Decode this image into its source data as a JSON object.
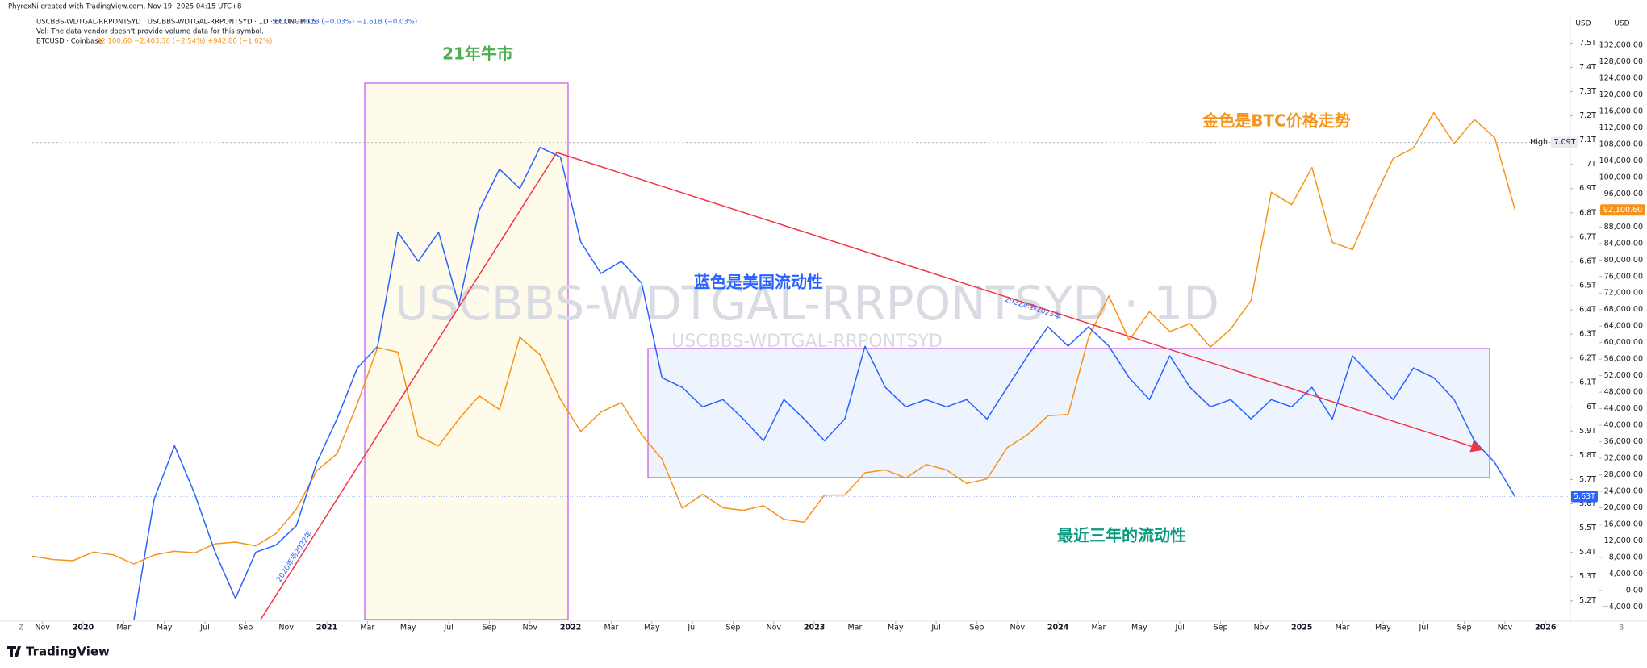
{
  "chart_data": {
    "type": "line",
    "attribution": "PhyrexNi created with TradingView.com, Nov 19, 2025 04:15 UTC+8",
    "vol_note": "Vol: The data vendor doesn't provide volume data for this symbol.",
    "watermark": "USCBBS-WDTGAL-RRPONTSYD · 1D",
    "watermark_small": "USCBBS-WDTGAL-RRPONTSYD",
    "brand": "TradingView",
    "corner_labels": [
      "Z",
      "B"
    ],
    "axis_headers": [
      "USD",
      "USD"
    ],
    "annotations": [
      {
        "text": "21年牛市"
      },
      {
        "text": "金色是BTC价格走势"
      },
      {
        "text": "蓝色是美国流动性"
      },
      {
        "text": "最近三年的流动性"
      },
      {
        "text": "2020年到2022年"
      },
      {
        "text": "2022年到2025年"
      }
    ],
    "x": [
      "2019-10",
      "2019-11",
      "2019-12",
      "2020-01",
      "2020-02",
      "2020-03",
      "2020-04",
      "2020-05",
      "2020-06",
      "2020-07",
      "2020-08",
      "2020-09",
      "2020-10",
      "2020-11",
      "2020-12",
      "2021-01",
      "2021-02",
      "2021-03",
      "2021-04",
      "2021-05",
      "2021-06",
      "2021-07",
      "2021-08",
      "2021-09",
      "2021-10",
      "2021-11",
      "2021-12",
      "2022-01",
      "2022-02",
      "2022-03",
      "2022-04",
      "2022-05",
      "2022-06",
      "2022-07",
      "2022-08",
      "2022-09",
      "2022-10",
      "2022-11",
      "2022-12",
      "2023-01",
      "2023-02",
      "2023-03",
      "2023-04",
      "2023-05",
      "2023-06",
      "2023-07",
      "2023-08",
      "2023-09",
      "2023-10",
      "2023-11",
      "2023-12",
      "2024-01",
      "2024-02",
      "2024-03",
      "2024-04",
      "2024-05",
      "2024-06",
      "2024-07",
      "2024-08",
      "2024-09",
      "2024-10",
      "2024-11",
      "2024-12",
      "2025-01",
      "2025-02",
      "2025-03",
      "2025-04",
      "2025-05",
      "2025-06",
      "2025-07",
      "2025-08",
      "2025-09",
      "2025-10",
      "2025-11"
    ],
    "series": [
      {
        "name": "USCBBS-WDTGAL-RRPONTSYD · USCBBS-WDTGAL-RRPONTSYD · 1D · ECONOMICS",
        "stats": "5.63T  −1.61B (−0.03%)  −1.61B (−0.03%)",
        "color": "#2962ff",
        "axis": "y",
        "values": [
          null,
          null,
          null,
          null,
          null,
          5.12,
          5.62,
          5.84,
          5.64,
          5.4,
          5.21,
          5.4,
          5.43,
          5.51,
          5.77,
          5.95,
          6.16,
          6.25,
          6.72,
          6.6,
          6.72,
          6.42,
          6.81,
          6.98,
          6.9,
          7.07,
          7.03,
          6.68,
          6.55,
          6.6,
          6.51,
          6.12,
          6.08,
          6.0,
          6.03,
          5.95,
          5.86,
          6.03,
          5.95,
          5.86,
          5.95,
          6.25,
          6.08,
          6.0,
          6.03,
          6.0,
          6.03,
          5.95,
          6.08,
          6.21,
          6.33,
          6.25,
          6.33,
          6.25,
          6.12,
          6.03,
          6.21,
          6.08,
          6.0,
          6.03,
          5.95,
          6.03,
          6.0,
          6.08,
          5.95,
          6.21,
          6.12,
          6.03,
          6.16,
          6.12,
          6.03,
          5.86,
          5.77,
          5.63
        ]
      },
      {
        "name": "BTCUSD · Coinbase",
        "stats": "92,100.60  −2,403.36 (−2.54%)  +942.80 (+1.02%)",
        "color": "#f7931a",
        "axis": "y2",
        "values": [
          8300,
          7500,
          7200,
          9300,
          8600,
          6400,
          8600,
          9500,
          9100,
          11300,
          11700,
          10800,
          13800,
          19700,
          29000,
          33100,
          45200,
          58800,
          57700,
          37300,
          35000,
          41500,
          47100,
          43800,
          61300,
          57000,
          46300,
          38500,
          43200,
          45500,
          37700,
          31800,
          19900,
          23300,
          20000,
          19400,
          20500,
          17200,
          16500,
          23100,
          23100,
          28500,
          29200,
          27200,
          30500,
          29200,
          25900,
          27000,
          34600,
          37700,
          42300,
          42600,
          61200,
          71300,
          60600,
          67500,
          62700,
          64600,
          58900,
          63300,
          70200,
          96400,
          93400,
          102400,
          84300,
          82500,
          94200,
          104600,
          107100,
          115700,
          108200,
          114000,
          109600,
          92100.6
        ]
      }
    ],
    "xticks": [
      {
        "value": "2019-11",
        "label": "Nov"
      },
      {
        "value": "2020-01",
        "label": "2020"
      },
      {
        "value": "2020-03",
        "label": "Mar"
      },
      {
        "value": "2020-05",
        "label": "May"
      },
      {
        "value": "2020-07",
        "label": "Jul"
      },
      {
        "value": "2020-09",
        "label": "Sep"
      },
      {
        "value": "2020-11",
        "label": "Nov"
      },
      {
        "value": "2021-01",
        "label": "2021"
      },
      {
        "value": "2021-03",
        "label": "Mar"
      },
      {
        "value": "2021-05",
        "label": "May"
      },
      {
        "value": "2021-07",
        "label": "Jul"
      },
      {
        "value": "2021-09",
        "label": "Sep"
      },
      {
        "value": "2021-11",
        "label": "Nov"
      },
      {
        "value": "2022-01",
        "label": "2022"
      },
      {
        "value": "2022-03",
        "label": "Mar"
      },
      {
        "value": "2022-05",
        "label": "May"
      },
      {
        "value": "2022-07",
        "label": "Jul"
      },
      {
        "value": "2022-09",
        "label": "Sep"
      },
      {
        "value": "2022-11",
        "label": "Nov"
      },
      {
        "value": "2023-01",
        "label": "2023"
      },
      {
        "value": "2023-03",
        "label": "Mar"
      },
      {
        "value": "2023-05",
        "label": "May"
      },
      {
        "value": "2023-07",
        "label": "Jul"
      },
      {
        "value": "2023-09",
        "label": "Sep"
      },
      {
        "value": "2023-11",
        "label": "Nov"
      },
      {
        "value": "2024-01",
        "label": "2024"
      },
      {
        "value": "2024-03",
        "label": "Mar"
      },
      {
        "value": "2024-05",
        "label": "May"
      },
      {
        "value": "2024-07",
        "label": "Jul"
      },
      {
        "value": "2024-09",
        "label": "Sep"
      },
      {
        "value": "2024-11",
        "label": "Nov"
      },
      {
        "value": "2025-01",
        "label": "2025"
      },
      {
        "value": "2025-03",
        "label": "Mar"
      },
      {
        "value": "2025-05",
        "label": "May"
      },
      {
        "value": "2025-07",
        "label": "Jul"
      },
      {
        "value": "2025-09",
        "label": "Sep"
      },
      {
        "value": "2025-11",
        "label": "Nov"
      },
      {
        "value": "2026-01",
        "label": "2026"
      }
    ],
    "ylim": [
      5.116,
      7.611
    ],
    "yticks": [
      {
        "value": 5.2,
        "label": "5.2T"
      },
      {
        "value": 5.3,
        "label": "5.3T"
      },
      {
        "value": 5.4,
        "label": "5.4T"
      },
      {
        "value": 5.5,
        "label": "5.5T"
      },
      {
        "value": 5.6,
        "label": "5.6T"
      },
      {
        "value": 5.7,
        "label": "5.7T"
      },
      {
        "value": 5.8,
        "label": "5.8T"
      },
      {
        "value": 5.9,
        "label": "5.9T"
      },
      {
        "value": 6,
        "label": "6T"
      },
      {
        "value": 6.1,
        "label": "6.1T"
      },
      {
        "value": 6.2,
        "label": "6.2T"
      },
      {
        "value": 6.3,
        "label": "6.3T"
      },
      {
        "value": 6.4,
        "label": "6.4T"
      },
      {
        "value": 6.5,
        "label": "6.5T"
      },
      {
        "value": 6.6,
        "label": "6.6T"
      },
      {
        "value": 6.7,
        "label": "6.7T"
      },
      {
        "value": 6.8,
        "label": "6.8T"
      },
      {
        "value": 6.9,
        "label": "6.9T"
      },
      {
        "value": 7,
        "label": "7T"
      },
      {
        "value": 7.1,
        "label": "7.1T"
      },
      {
        "value": 7.2,
        "label": "7.2T"
      },
      {
        "value": 7.3,
        "label": "7.3T"
      },
      {
        "value": 7.4,
        "label": "7.4T"
      },
      {
        "value": 7.5,
        "label": "7.5T"
      }
    ],
    "y2lim": [
      -7437,
      139030
    ],
    "y2ticks": [
      {
        "value": -4000,
        "label": "−4,000.00"
      },
      {
        "value": 0,
        "label": "0.00"
      },
      {
        "value": 4000,
        "label": "4,000.00"
      },
      {
        "value": 8000,
        "label": "8,000.00"
      },
      {
        "value": 12000,
        "label": "12,000.00"
      },
      {
        "value": 16000,
        "label": "16,000.00"
      },
      {
        "value": 20000,
        "label": "20,000.00"
      },
      {
        "value": 24000,
        "label": "24,000.00"
      },
      {
        "value": 28000,
        "label": "28,000.00"
      },
      {
        "value": 32000,
        "label": "32,000.00"
      },
      {
        "value": 36000,
        "label": "36,000.00"
      },
      {
        "value": 40000,
        "label": "40,000.00"
      },
      {
        "value": 44000,
        "label": "44,000.00"
      },
      {
        "value": 48000,
        "label": "48,000.00"
      },
      {
        "value": 52000,
        "label": "52,000.00"
      },
      {
        "value": 56000,
        "label": "56,000.00"
      },
      {
        "value": 60000,
        "label": "60,000.00"
      },
      {
        "value": 64000,
        "label": "64,000.00"
      },
      {
        "value": 68000,
        "label": "68,000.00"
      },
      {
        "value": 72000,
        "label": "72,000.00"
      },
      {
        "value": 76000,
        "label": "76,000.00"
      },
      {
        "value": 80000,
        "label": "80,000.00"
      },
      {
        "value": 84000,
        "label": "84,000.00"
      },
      {
        "value": 88000,
        "label": "88,000.00"
      },
      {
        "value": 92000,
        "label": "92,000.00"
      },
      {
        "value": 96000,
        "label": "96,000.00"
      },
      {
        "value": 100000,
        "label": "100,000.00"
      },
      {
        "value": 104000,
        "label": "104,000.00"
      },
      {
        "value": 108000,
        "label": "108,000.00"
      },
      {
        "value": 112000,
        "label": "112,000.00"
      },
      {
        "value": 116000,
        "label": "116,000.00"
      },
      {
        "value": 120000,
        "label": "120,000.00"
      },
      {
        "value": 124000,
        "label": "124,000.00"
      },
      {
        "value": 128000,
        "label": "128,000.00"
      },
      {
        "value": 132000,
        "label": "132,000.00"
      }
    ],
    "high": {
      "text": "High",
      "value": 7.09,
      "label": "7.09T"
    },
    "badges": [
      {
        "value": 5.63,
        "label": "5.63T",
        "axis": "y",
        "color": "#2962ff"
      },
      {
        "value": 92100.6,
        "label": "92,100.60",
        "axis": "y2",
        "color": "#f7931a"
      }
    ],
    "grid": false
  }
}
